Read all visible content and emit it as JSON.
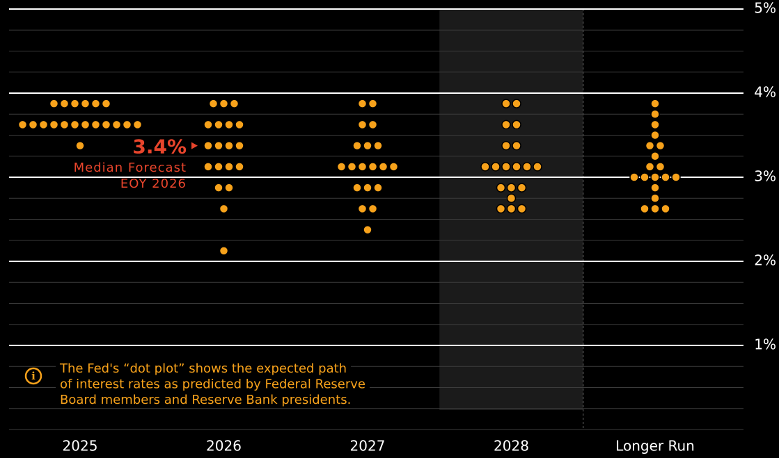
{
  "chart_data": {
    "type": "dot",
    "categories": [
      "2025",
      "2026",
      "2027",
      "2028",
      "Longer Run"
    ],
    "columns": [
      {
        "rates": [
          3.875,
          3.625,
          3.375
        ],
        "counts": [
          6,
          12,
          1
        ]
      },
      {
        "rates": [
          3.875,
          3.625,
          3.375,
          3.125,
          2.875,
          2.625,
          2.125
        ],
        "counts": [
          3,
          4,
          4,
          4,
          2,
          1,
          1
        ]
      },
      {
        "rates": [
          3.875,
          3.625,
          3.375,
          3.125,
          2.875,
          2.625,
          2.375
        ],
        "counts": [
          2,
          2,
          3,
          6,
          3,
          2,
          1
        ]
      },
      {
        "rates": [
          3.875,
          3.625,
          3.375,
          3.125,
          2.875,
          2.75,
          2.625
        ],
        "counts": [
          2,
          2,
          2,
          6,
          3,
          1,
          3
        ]
      },
      {
        "rates": [
          3.875,
          3.75,
          3.625,
          3.5,
          3.375,
          3.25,
          3.125,
          3.0,
          2.875,
          2.75,
          2.625
        ],
        "counts": [
          1,
          1,
          1,
          1,
          2,
          1,
          2,
          5,
          1,
          1,
          3
        ]
      }
    ],
    "color": "#f7a21b",
    "ylim": [
      0,
      5
    ],
    "yticks": [
      {
        "value": 1,
        "label": "1%"
      },
      {
        "value": 2,
        "label": "2%"
      },
      {
        "value": 3,
        "label": "3%"
      },
      {
        "value": 4,
        "label": "4%"
      },
      {
        "value": 5,
        "label": "5%"
      }
    ],
    "minor_yticks": [
      0,
      0.25,
      0.5,
      0.75,
      1.25,
      1.5,
      1.75,
      2.25,
      2.5,
      2.75,
      3.25,
      3.5,
      3.75,
      4.25,
      4.5,
      4.75
    ],
    "highlight_category": "2028",
    "annotation": {
      "value_text": "3.4%",
      "lines": [
        "Median Forecast",
        "EOY 2026"
      ]
    },
    "note": [
      "The Fed's “dot plot” shows the expected path",
      "of interest rates as predicted by Federal Reserve",
      "Board members and Reserve Bank presidents."
    ]
  }
}
